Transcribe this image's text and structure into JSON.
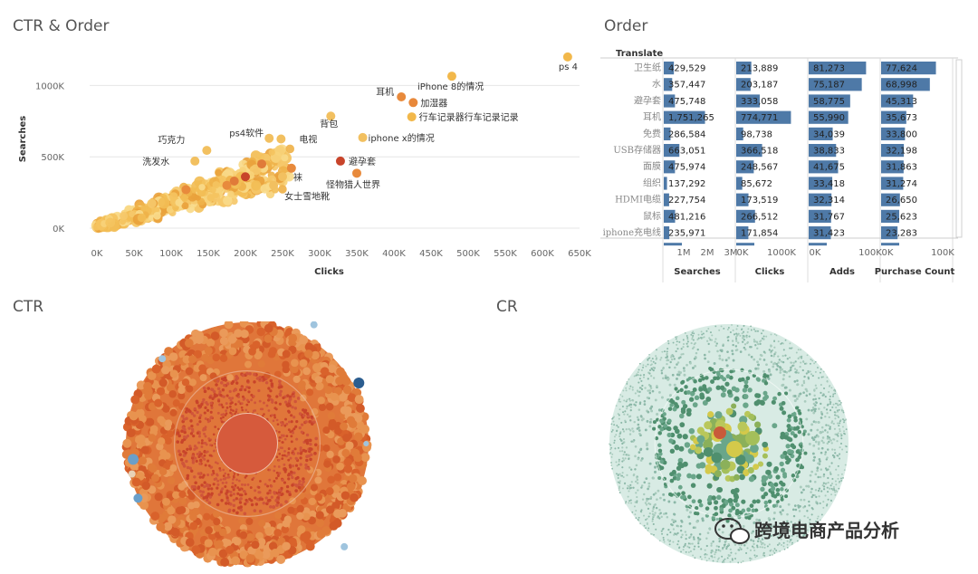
{
  "titles": {
    "scatter": "CTR & Order",
    "order": "Order",
    "ctr": "CTR",
    "cr": "CR"
  },
  "watermark": "跨境电商产品分析",
  "chart_data": [
    {
      "type": "scatter",
      "title": "CTR & Order",
      "xlabel": "Clicks",
      "ylabel": "Searches",
      "xlim": [
        0,
        650000
      ],
      "ylim": [
        0,
        1250000
      ],
      "x_ticks": [
        "0K",
        "50K",
        "100K",
        "150K",
        "200K",
        "250K",
        "300K",
        "350K",
        "400K",
        "450K",
        "500K",
        "550K",
        "600K",
        "650K"
      ],
      "x_tick_values": [
        0,
        50000,
        100000,
        150000,
        200000,
        250000,
        300000,
        350000,
        400000,
        450000,
        500000,
        550000,
        600000,
        650000
      ],
      "y_ticks": [
        "0K",
        "500K",
        "1000K"
      ],
      "y_tick_values": [
        0,
        500000,
        1000000
      ],
      "grid": true,
      "labeled_points": [
        {
          "label": "ps 4",
          "x": 634000,
          "y": 1200000,
          "color": "#f2b84b"
        },
        {
          "label": "iPhone 8的情况",
          "x": 478000,
          "y": 1065000,
          "color": "#f2b84b"
        },
        {
          "label": "耳机",
          "x": 410000,
          "y": 920000,
          "color": "#e88a3c"
        },
        {
          "label": "加湿器",
          "x": 426000,
          "y": 880000,
          "color": "#e8883a"
        },
        {
          "label": "行车记录器行车记录记录",
          "x": 424000,
          "y": 780000,
          "color": "#f2b84b"
        },
        {
          "label": "背包",
          "x": 315000,
          "y": 785000,
          "color": "#f2c060"
        },
        {
          "label": "iphone x的情况",
          "x": 358000,
          "y": 635000,
          "color": "#f2c060"
        },
        {
          "label": "巧克力",
          "x": 148000,
          "y": 545000,
          "color": "#f2c060"
        },
        {
          "label": "ps4软件",
          "x": 232000,
          "y": 630000,
          "color": "#f2c060"
        },
        {
          "label": "电视",
          "x": 248000,
          "y": 625000,
          "color": "#f2c060"
        },
        {
          "label": "洗发水",
          "x": 132000,
          "y": 470000,
          "color": "#f2c060"
        },
        {
          "label": "避孕套",
          "x": 328000,
          "y": 470000,
          "color": "#c8442a"
        },
        {
          "label": "袜",
          "x": 250000,
          "y": 360000,
          "color": "#f2c060"
        },
        {
          "label": "女士雪地靴",
          "x": 238000,
          "y": 300000,
          "color": "#f2c060"
        },
        {
          "label": "怪物猎人世界",
          "x": 350000,
          "y": 385000,
          "color": "#e88a3c"
        }
      ]
    },
    {
      "type": "bar",
      "title": "Order",
      "row_header": "Translate",
      "categories": [
        "卫生纸",
        "水",
        "避孕套",
        "耳机",
        "免费",
        "USB存储器",
        "面膜",
        "组织",
        "HDMI电缆",
        "鼠标",
        "iphone充电线"
      ],
      "series": [
        {
          "name": "Searches",
          "values": [
            429529,
            357447,
            475748,
            1751265,
            286584,
            663051,
            475974,
            137292,
            227754,
            481216,
            235971
          ],
          "labels": [
            "429,529",
            "357,447",
            "475,748",
            "1,751,265",
            "286,584",
            "663,051",
            "475,974",
            "137,292",
            "227,754",
            "481,216",
            "235,971"
          ],
          "max": 3000000,
          "ticks": [
            "1M",
            "2M",
            "3M"
          ],
          "tick_values": [
            1000000,
            2000000,
            3000000
          ]
        },
        {
          "name": "Clicks",
          "values": [
            213889,
            203187,
            333058,
            774771,
            98738,
            366518,
            248567,
            85672,
            173519,
            266512,
            171854
          ],
          "labels": [
            "213,889",
            "203,187",
            "333,058",
            "774,771",
            "98,738",
            "366,518",
            "248,567",
            "85,672",
            "173,519",
            "266,512",
            "171,854"
          ],
          "max": 1000000,
          "ticks": [
            "0K",
            "1000K"
          ],
          "tick_values": [
            0,
            1000000
          ]
        },
        {
          "name": "Adds",
          "values": [
            81273,
            75187,
            58775,
            55990,
            34039,
            38833,
            41675,
            33418,
            32314,
            31767,
            31423
          ],
          "labels": [
            "81,273",
            "75,187",
            "58,775",
            "55,990",
            "34,039",
            "38,833",
            "41,675",
            "33,418",
            "32,314",
            "31,767",
            "31,423"
          ],
          "max": 100000,
          "ticks": [
            "0K",
            "100K"
          ],
          "tick_values": [
            0,
            100000
          ]
        },
        {
          "name": "Purchase Count",
          "values": [
            77624,
            68998,
            45313,
            35673,
            33800,
            32198,
            31863,
            31274,
            26650,
            25623,
            23283
          ],
          "labels": [
            "77,624",
            "68,998",
            "45,313",
            "35,673",
            "33,800",
            "32,198",
            "31,863",
            "31,274",
            "26,650",
            "25,623",
            "23,283"
          ],
          "max": 100000,
          "ticks": [
            "0K",
            "100K"
          ],
          "tick_values": [
            0,
            100000
          ]
        }
      ]
    },
    {
      "type": "scatter",
      "title": "CTR",
      "palette": [
        "#c8442a",
        "#d9622b",
        "#e07b39",
        "#f0a860",
        "#9fc4de",
        "#6a9fc9",
        "#2b5d8f"
      ]
    },
    {
      "type": "scatter",
      "title": "CR",
      "palette": [
        "#8cb8a8",
        "#6aa68a",
        "#4f8f6e",
        "#a4bf5a",
        "#d4c94a",
        "#c85a3a"
      ]
    }
  ]
}
